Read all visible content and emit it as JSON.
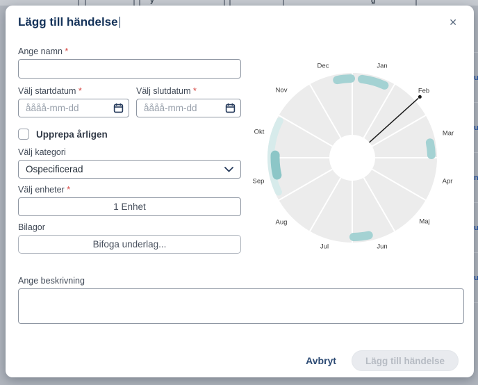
{
  "dialog": {
    "title": "Lägg till händelse",
    "close_glyph": "✕"
  },
  "required_marker": "*",
  "form": {
    "name": {
      "label": "Ange namn",
      "value": "",
      "required": true
    },
    "start_date": {
      "label": "Välj startdatum",
      "placeholder": "åååå-mm-dd",
      "required": true
    },
    "end_date": {
      "label": "Välj slutdatum",
      "placeholder": "åååå-mm-dd",
      "required": true
    },
    "repeat": {
      "label": "Upprepa årligen",
      "checked": false
    },
    "category": {
      "label": "Välj kategori",
      "value": "Ospecificerad"
    },
    "units": {
      "label": "Välj enheter",
      "button_label": "1 Enhet",
      "required": true
    },
    "attachments": {
      "label": "Bilagor",
      "button_label": "Bifoga underlag..."
    },
    "description": {
      "label": "Ange beskrivning",
      "value": ""
    }
  },
  "footer": {
    "cancel_label": "Avbryt",
    "submit_label": "Lägg till händelse",
    "submit_enabled": false
  },
  "chart_data": {
    "type": "radial-month-wheel",
    "months": [
      "Jan",
      "Feb",
      "Mar",
      "Apr",
      "Maj",
      "Jun",
      "Jul",
      "Aug",
      "Sep",
      "Okt",
      "Nov",
      "Dec"
    ],
    "pointer": {
      "month": "Feb",
      "angle_deg": -42
    },
    "highlight_arcs": [
      {
        "months": "Dec",
        "start_deg": -101,
        "end_deg": -91,
        "color": "#a4d2d3",
        "radius": 114,
        "width": 12
      },
      {
        "months": "Jan",
        "start_deg": -83,
        "end_deg": -66,
        "color": "#a4d2d3",
        "radius": 114,
        "width": 12
      },
      {
        "months": "Mar",
        "start_deg": -11,
        "end_deg": -2,
        "color": "#a4d2d3",
        "radius": 114,
        "width": 12
      },
      {
        "months": "Jun",
        "start_deg": 78,
        "end_deg": 89,
        "color": "#a4d2d3",
        "radius": 114,
        "width": 12
      },
      {
        "months": "Sep–Okt",
        "start_deg": 155,
        "end_deg": 207,
        "color": "#d7ebeb",
        "radius": 117,
        "width": 10
      },
      {
        "months": "Sep",
        "start_deg": 167,
        "end_deg": 182,
        "color": "#8cc6c7",
        "radius": 111,
        "width": 13
      }
    ],
    "wheel_fill": "#ececec",
    "divider_color": "#ffffff",
    "hole_color": "#ffffff",
    "pointer_color": "#1a1a1a",
    "label_color": "#3c3c3c"
  },
  "background": {
    "top_fragments": [
      "y",
      "g"
    ],
    "right_fragments": [
      "u",
      "u",
      "ng",
      "u",
      "u"
    ]
  },
  "colors": {
    "accent_teal": "#a4d2d3",
    "title_navy": "#15335a",
    "required_red": "#d64541",
    "overlay_gray": "#b1b6be"
  }
}
